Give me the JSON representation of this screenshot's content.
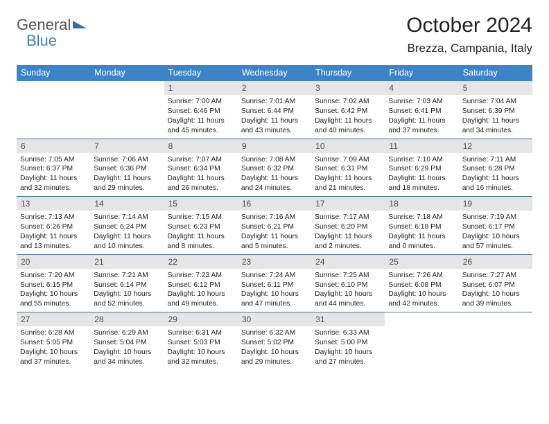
{
  "logo": {
    "general": "General",
    "blue": "Blue"
  },
  "title": "October 2024",
  "location": "Brezza, Campania, Italy",
  "dayHeaders": [
    "Sunday",
    "Monday",
    "Tuesday",
    "Wednesday",
    "Thursday",
    "Friday",
    "Saturday"
  ],
  "colors": {
    "header_bg": "#3d84c6",
    "header_text": "#ffffff",
    "daynum_bg": "#e5e5e5",
    "daynum_text": "#4a4a4a",
    "week_border": "#3d6fa0",
    "logo_general": "#555555",
    "logo_blue": "#3d84c6"
  },
  "typography": {
    "title_fontsize": 30,
    "location_fontsize": 17,
    "dayheader_fontsize": 12.5,
    "daynum_fontsize": 12,
    "body_fontsize": 10.3
  },
  "weeks": [
    [
      null,
      null,
      {
        "day": "1",
        "sunrise": "Sunrise: 7:00 AM",
        "sunset": "Sunset: 6:46 PM",
        "daylight": "Daylight: 11 hours and 45 minutes."
      },
      {
        "day": "2",
        "sunrise": "Sunrise: 7:01 AM",
        "sunset": "Sunset: 6:44 PM",
        "daylight": "Daylight: 11 hours and 43 minutes."
      },
      {
        "day": "3",
        "sunrise": "Sunrise: 7:02 AM",
        "sunset": "Sunset: 6:42 PM",
        "daylight": "Daylight: 11 hours and 40 minutes."
      },
      {
        "day": "4",
        "sunrise": "Sunrise: 7:03 AM",
        "sunset": "Sunset: 6:41 PM",
        "daylight": "Daylight: 11 hours and 37 minutes."
      },
      {
        "day": "5",
        "sunrise": "Sunrise: 7:04 AM",
        "sunset": "Sunset: 6:39 PM",
        "daylight": "Daylight: 11 hours and 34 minutes."
      }
    ],
    [
      {
        "day": "6",
        "sunrise": "Sunrise: 7:05 AM",
        "sunset": "Sunset: 6:37 PM",
        "daylight": "Daylight: 11 hours and 32 minutes."
      },
      {
        "day": "7",
        "sunrise": "Sunrise: 7:06 AM",
        "sunset": "Sunset: 6:36 PM",
        "daylight": "Daylight: 11 hours and 29 minutes."
      },
      {
        "day": "8",
        "sunrise": "Sunrise: 7:07 AM",
        "sunset": "Sunset: 6:34 PM",
        "daylight": "Daylight: 11 hours and 26 minutes."
      },
      {
        "day": "9",
        "sunrise": "Sunrise: 7:08 AM",
        "sunset": "Sunset: 6:32 PM",
        "daylight": "Daylight: 11 hours and 24 minutes."
      },
      {
        "day": "10",
        "sunrise": "Sunrise: 7:09 AM",
        "sunset": "Sunset: 6:31 PM",
        "daylight": "Daylight: 11 hours and 21 minutes."
      },
      {
        "day": "11",
        "sunrise": "Sunrise: 7:10 AM",
        "sunset": "Sunset: 6:29 PM",
        "daylight": "Daylight: 11 hours and 18 minutes."
      },
      {
        "day": "12",
        "sunrise": "Sunrise: 7:11 AM",
        "sunset": "Sunset: 6:28 PM",
        "daylight": "Daylight: 11 hours and 16 minutes."
      }
    ],
    [
      {
        "day": "13",
        "sunrise": "Sunrise: 7:13 AM",
        "sunset": "Sunset: 6:26 PM",
        "daylight": "Daylight: 11 hours and 13 minutes."
      },
      {
        "day": "14",
        "sunrise": "Sunrise: 7:14 AM",
        "sunset": "Sunset: 6:24 PM",
        "daylight": "Daylight: 11 hours and 10 minutes."
      },
      {
        "day": "15",
        "sunrise": "Sunrise: 7:15 AM",
        "sunset": "Sunset: 6:23 PM",
        "daylight": "Daylight: 11 hours and 8 minutes."
      },
      {
        "day": "16",
        "sunrise": "Sunrise: 7:16 AM",
        "sunset": "Sunset: 6:21 PM",
        "daylight": "Daylight: 11 hours and 5 minutes."
      },
      {
        "day": "17",
        "sunrise": "Sunrise: 7:17 AM",
        "sunset": "Sunset: 6:20 PM",
        "daylight": "Daylight: 11 hours and 2 minutes."
      },
      {
        "day": "18",
        "sunrise": "Sunrise: 7:18 AM",
        "sunset": "Sunset: 6:18 PM",
        "daylight": "Daylight: 11 hours and 0 minutes."
      },
      {
        "day": "19",
        "sunrise": "Sunrise: 7:19 AM",
        "sunset": "Sunset: 6:17 PM",
        "daylight": "Daylight: 10 hours and 57 minutes."
      }
    ],
    [
      {
        "day": "20",
        "sunrise": "Sunrise: 7:20 AM",
        "sunset": "Sunset: 6:15 PM",
        "daylight": "Daylight: 10 hours and 55 minutes."
      },
      {
        "day": "21",
        "sunrise": "Sunrise: 7:21 AM",
        "sunset": "Sunset: 6:14 PM",
        "daylight": "Daylight: 10 hours and 52 minutes."
      },
      {
        "day": "22",
        "sunrise": "Sunrise: 7:23 AM",
        "sunset": "Sunset: 6:12 PM",
        "daylight": "Daylight: 10 hours and 49 minutes."
      },
      {
        "day": "23",
        "sunrise": "Sunrise: 7:24 AM",
        "sunset": "Sunset: 6:11 PM",
        "daylight": "Daylight: 10 hours and 47 minutes."
      },
      {
        "day": "24",
        "sunrise": "Sunrise: 7:25 AM",
        "sunset": "Sunset: 6:10 PM",
        "daylight": "Daylight: 10 hours and 44 minutes."
      },
      {
        "day": "25",
        "sunrise": "Sunrise: 7:26 AM",
        "sunset": "Sunset: 6:08 PM",
        "daylight": "Daylight: 10 hours and 42 minutes."
      },
      {
        "day": "26",
        "sunrise": "Sunrise: 7:27 AM",
        "sunset": "Sunset: 6:07 PM",
        "daylight": "Daylight: 10 hours and 39 minutes."
      }
    ],
    [
      {
        "day": "27",
        "sunrise": "Sunrise: 6:28 AM",
        "sunset": "Sunset: 5:05 PM",
        "daylight": "Daylight: 10 hours and 37 minutes."
      },
      {
        "day": "28",
        "sunrise": "Sunrise: 6:29 AM",
        "sunset": "Sunset: 5:04 PM",
        "daylight": "Daylight: 10 hours and 34 minutes."
      },
      {
        "day": "29",
        "sunrise": "Sunrise: 6:31 AM",
        "sunset": "Sunset: 5:03 PM",
        "daylight": "Daylight: 10 hours and 32 minutes."
      },
      {
        "day": "30",
        "sunrise": "Sunrise: 6:32 AM",
        "sunset": "Sunset: 5:02 PM",
        "daylight": "Daylight: 10 hours and 29 minutes."
      },
      {
        "day": "31",
        "sunrise": "Sunrise: 6:33 AM",
        "sunset": "Sunset: 5:00 PM",
        "daylight": "Daylight: 10 hours and 27 minutes."
      },
      null,
      null
    ]
  ]
}
